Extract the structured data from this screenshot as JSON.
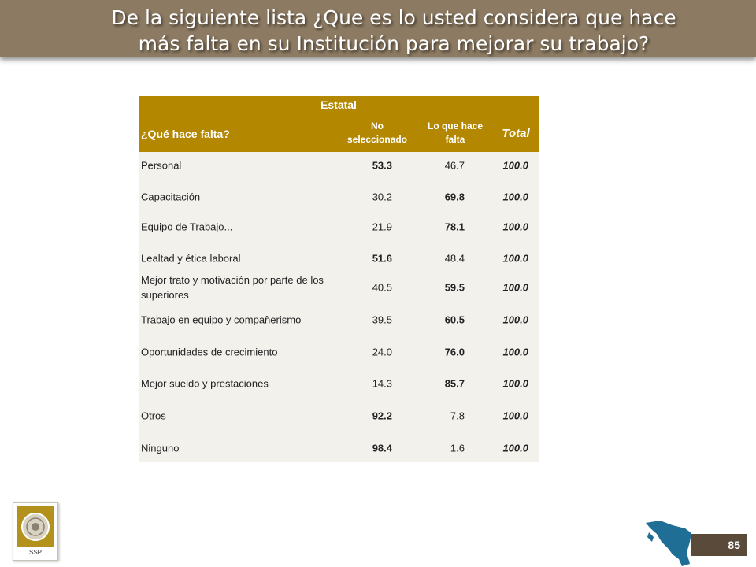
{
  "title_line1": "De la siguiente lista ¿Que es lo usted considera que hace",
  "title_line2": "más falta en su Institución para mejorar su trabajo?",
  "table": {
    "group_header": "Estatal",
    "col_question": "¿Qué hace falta?",
    "col_no_line1": "No",
    "col_no_line2": "seleccionado",
    "col_falta_line1": "Lo que hace",
    "col_falta_line2": "falta",
    "col_total": "Total",
    "rows": [
      {
        "label": "Personal",
        "no": "53.3",
        "falta": "46.7",
        "total": "100.0",
        "bold": "no"
      },
      {
        "label": "Capacitación",
        "no": "30.2",
        "falta": "69.8",
        "total": "100.0",
        "bold": "falta"
      },
      {
        "label": "Equipo de Trabajo...",
        "no": "21.9",
        "falta": "78.1",
        "total": "100.0",
        "bold": "falta"
      },
      {
        "label": "Lealtad y ética laboral",
        "no": "51.6",
        "falta": "48.4",
        "total": "100.0",
        "bold": "no"
      },
      {
        "label": "Mejor trato y motivación por parte de los superiores",
        "no": "40.5",
        "falta": "59.5",
        "total": "100.0",
        "bold": "falta"
      },
      {
        "label": "Trabajo en equipo y compañerismo",
        "no": "39.5",
        "falta": "60.5",
        "total": "100.0",
        "bold": "falta"
      },
      {
        "label": "Oportunidades de crecimiento",
        "no": "24.0",
        "falta": "76.0",
        "total": "100.0",
        "bold": "falta"
      },
      {
        "label": "Mejor sueldo y prestaciones",
        "no": "14.3",
        "falta": "85.7",
        "total": "100.0",
        "bold": "falta"
      },
      {
        "label": "Otros",
        "no": "92.2",
        "falta": "7.8",
        "total": "100.0",
        "bold": "no"
      },
      {
        "label": "Ninguno",
        "no": "98.4",
        "falta": "1.6",
        "total": "100.0",
        "bold": "no"
      }
    ]
  },
  "logo_text": "SSP",
  "page_number": "85",
  "colors": {
    "title_bar": "#8c7a62",
    "table_header": "#b38700",
    "table_body": "#f3f1ec",
    "map": "#1e6e96"
  }
}
